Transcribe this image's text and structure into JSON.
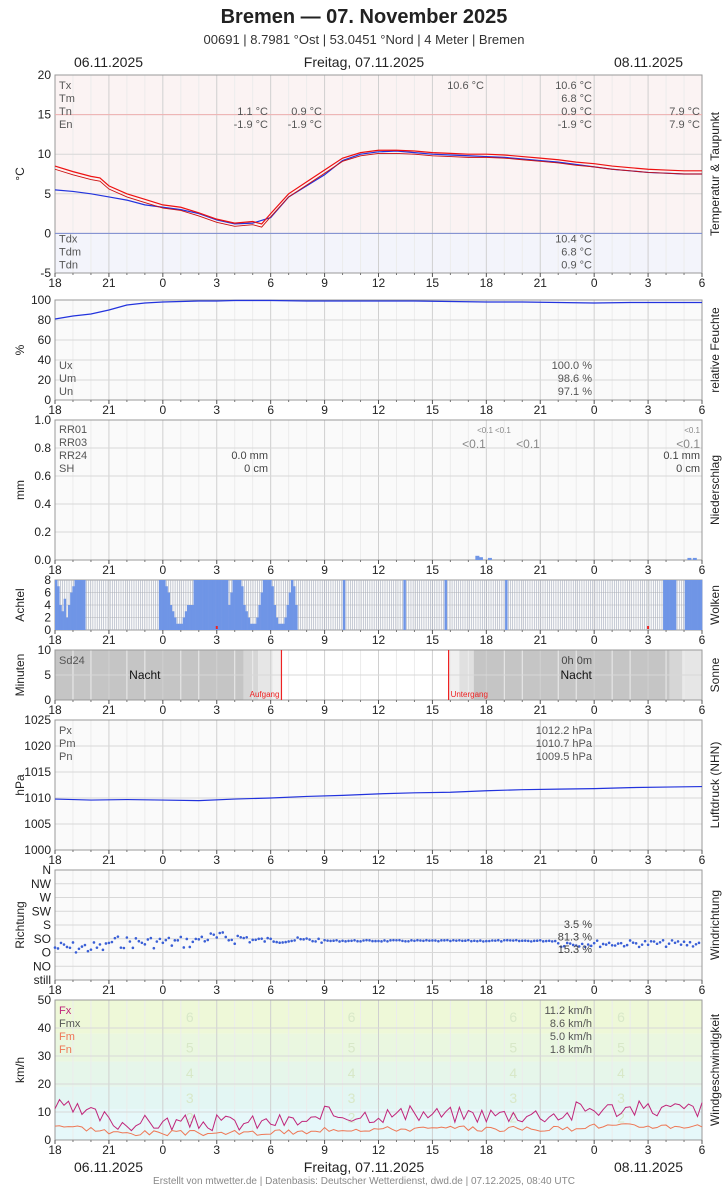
{
  "header": {
    "title": "Bremen  —  07. November 2025",
    "subtitle": "00691  |  8.7981 °Ost  |  53.0451 °Nord  |  4 Meter  |  Bremen",
    "date_left": "06.11.2025",
    "date_center": "Freitag, 07.11.2025",
    "date_right": "08.11.2025"
  },
  "footer": "Erstellt von mtwetter.de | Datenbasis: Deutscher Wetterdienst, dwd.de | 07.12.2025, 08:40 UTC",
  "colors": {
    "red": "#ee1111",
    "blue": "#2233dd",
    "bar": "#6f95e6",
    "dot": "#3a5fd6",
    "grid": "#dddddd",
    "magenta": "#c0257a",
    "orange": "#ee7755"
  },
  "x_ticks": [
    "18",
    "21",
    "0",
    "3",
    "6",
    "9",
    "12",
    "15",
    "18",
    "21",
    "0",
    "3",
    "6"
  ],
  "chart_data": [
    {
      "type": "line",
      "name": "temperature",
      "ylabel": "°C",
      "side_label": "Temperatur & Taupunkt",
      "ylim": [
        -5,
        20
      ],
      "yticks": [
        "20",
        "15",
        "10",
        "5",
        "0",
        "-5"
      ],
      "x_range_hours": [
        0,
        36
      ],
      "series": [
        {
          "name": "T",
          "color": "#ee1111",
          "x": [
            0,
            1,
            2,
            2.5,
            3,
            4,
            5,
            6,
            7,
            8,
            9,
            10,
            11,
            11.5,
            12,
            13,
            14,
            15,
            16,
            17,
            18,
            19,
            20,
            21,
            22,
            23,
            24,
            25,
            26,
            27,
            28,
            29,
            30,
            31,
            32,
            33,
            34,
            35,
            36
          ],
          "values": [
            8.5,
            7.8,
            7.2,
            7,
            6,
            5,
            4.3,
            3.6,
            3.3,
            2.6,
            1.8,
            1.3,
            1.5,
            1.2,
            2.5,
            5,
            6.5,
            8,
            9.5,
            10.2,
            10.5,
            10.5,
            10.4,
            10.2,
            10.1,
            10,
            10,
            9.9,
            9.7,
            9.5,
            9.3,
            9,
            8.8,
            8.5,
            8.3,
            8.1,
            8,
            7.9,
            7.9
          ]
        },
        {
          "name": "Td",
          "color": "#2233dd",
          "x": [
            0,
            1,
            2,
            3,
            4,
            5,
            6,
            7,
            8,
            9,
            10,
            11,
            12,
            13,
            14,
            15,
            16,
            17,
            18,
            19,
            20,
            21,
            22,
            23,
            24,
            25,
            26,
            27,
            28,
            29,
            30,
            31,
            32,
            33,
            34,
            35,
            36
          ],
          "values": [
            5.5,
            5.3,
            5,
            4.6,
            4.2,
            3.6,
            3.3,
            3,
            2.5,
            1.7,
            1.2,
            1.3,
            2,
            4.6,
            6,
            7.4,
            9.2,
            10,
            10.3,
            10.4,
            10.2,
            10,
            9.9,
            9.8,
            9.7,
            9.6,
            9.4,
            9.2,
            9,
            8.7,
            8.4,
            8.1,
            7.9,
            7.7,
            7.6,
            7.5,
            7.5
          ]
        }
      ],
      "labels_top": [
        {
          "k": "Tx",
          "v1": "",
          "v2": "10.6 °C",
          "v3": "10.6 °C",
          "v4": ""
        },
        {
          "k": "Tm",
          "v1": "",
          "v2": "",
          "v3": "6.8 °C",
          "v4": ""
        },
        {
          "k": "Tn",
          "v1": "1.1 °C",
          "v1b": "0.9 °C",
          "v3": "0.9 °C",
          "v4": "7.9 °C"
        },
        {
          "k": "En",
          "v1": "-1.9 °C",
          "v1b": "-1.9 °C",
          "v3": "-1.9 °C",
          "v4": "7.9 °C"
        }
      ],
      "labels_bottom": [
        {
          "k": "Tdx",
          "v3": "10.4 °C"
        },
        {
          "k": "Tdm",
          "v3": "6.8 °C"
        },
        {
          "k": "Tdn",
          "v3": "0.9 °C"
        }
      ]
    },
    {
      "type": "line",
      "name": "humidity",
      "ylabel": "%",
      "side_label": "relative Feuchte",
      "ylim": [
        0,
        100
      ],
      "yticks": [
        "100",
        "80",
        "60",
        "40",
        "20",
        "0"
      ],
      "series": [
        {
          "name": "RH",
          "color": "#2233dd",
          "x": [
            0,
            1,
            2,
            3,
            4,
            5,
            6,
            7,
            8,
            9,
            10,
            12,
            14,
            16,
            18,
            20,
            22,
            24,
            26,
            28,
            30,
            32,
            34,
            36
          ],
          "values": [
            81,
            84,
            86,
            90,
            95,
            97,
            98,
            98.5,
            99,
            99,
            99.5,
            99.5,
            99,
            99,
            99,
            99,
            98.5,
            98,
            98,
            97.5,
            97,
            97.5,
            97.5,
            97.5
          ]
        }
      ],
      "labels": [
        {
          "k": "Ux",
          "v": "100.0 %"
        },
        {
          "k": "Um",
          "v": "98.6 %"
        },
        {
          "k": "Un",
          "v": "97.1 %"
        }
      ]
    },
    {
      "type": "bar",
      "name": "precipitation",
      "ylabel": "mm",
      "side_label": "Niederschlag",
      "ylim": [
        0,
        1.0
      ],
      "yticks": [
        "1.0",
        "0.8",
        "0.6",
        "0.4",
        "0.2",
        "0.0"
      ],
      "bars": [
        {
          "x": 23.5,
          "value": 0.03
        },
        {
          "x": 23.7,
          "value": 0.02
        },
        {
          "x": 24.2,
          "value": 0.015
        },
        {
          "x": 35.3,
          "value": 0.015
        },
        {
          "x": 35.6,
          "value": 0.015
        }
      ],
      "labels": [
        {
          "k": "RR01",
          "v": "",
          "note1": "<0.1",
          "note2": "<0.1",
          "note3": "<0.1"
        },
        {
          "k": "RR03",
          "v": "",
          "big1": "<0.1",
          "big2": "<0.1",
          "big3": "<0.1"
        },
        {
          "k": "RR24",
          "v": "0.0 mm",
          "v2": "0.1 mm"
        },
        {
          "k": "SH",
          "v": "0 cm",
          "v2": "0 cm"
        }
      ]
    },
    {
      "type": "bar",
      "name": "clouds",
      "ylabel": "Achtel",
      "side_label": "Wolken",
      "ylim": [
        0,
        8
      ],
      "yticks": [
        "8",
        "6",
        "4",
        "2",
        "0"
      ],
      "values": [
        8,
        7,
        4,
        3,
        5,
        2,
        4,
        6,
        7,
        8,
        8,
        8,
        8,
        8,
        0,
        0,
        0,
        0,
        0,
        0,
        0,
        0,
        0,
        0,
        0,
        0,
        0,
        0,
        0,
        0,
        0,
        0,
        0,
        0,
        0,
        0,
        0,
        0,
        0,
        0,
        0,
        0,
        0,
        0,
        0,
        0,
        0,
        0,
        8,
        8,
        8,
        7,
        6,
        4,
        3,
        2,
        1,
        1,
        1,
        2,
        3,
        4,
        4,
        4,
        8,
        8,
        8,
        8,
        8,
        8,
        8,
        8,
        8,
        8,
        8,
        8,
        8,
        8,
        8,
        8,
        4,
        6,
        8,
        8,
        8,
        8,
        7,
        4,
        3,
        2,
        1,
        1,
        1,
        2,
        4,
        6,
        8,
        8,
        8,
        8,
        7,
        4,
        2,
        1,
        1,
        1,
        2,
        4,
        6,
        8,
        7,
        4,
        0,
        0,
        0,
        0,
        0,
        0,
        0,
        0,
        0,
        0,
        0,
        0,
        0,
        0,
        0,
        0,
        0,
        0,
        0,
        0,
        0,
        8,
        0,
        0,
        0,
        0,
        0,
        0,
        0,
        0,
        0,
        0,
        0,
        0,
        0,
        0,
        0,
        0,
        0,
        0,
        0,
        0,
        0,
        0,
        0,
        0,
        0,
        0,
        0,
        8,
        0,
        0,
        0,
        0,
        0,
        0,
        0,
        0,
        0,
        0,
        0,
        0,
        0,
        0,
        0,
        0,
        0,
        0,
        8,
        0,
        0,
        0,
        0,
        0,
        0,
        0,
        0,
        0,
        0,
        0,
        0,
        0,
        0,
        0,
        0,
        0,
        0,
        0,
        0,
        0,
        0,
        0,
        0,
        0,
        0,
        0,
        8,
        0,
        0,
        0,
        0,
        0,
        0,
        0,
        0,
        0,
        0,
        0,
        0,
        0,
        0,
        0,
        0,
        0,
        0,
        0,
        0,
        0,
        0,
        0,
        0,
        0,
        0,
        0,
        0,
        0,
        0,
        0,
        0,
        0,
        0,
        0,
        0,
        0,
        0,
        0,
        0,
        0,
        0,
        0,
        0,
        0,
        0,
        0,
        0,
        0,
        0,
        0,
        0,
        0,
        0,
        0,
        0,
        0,
        0,
        0,
        0,
        0,
        0,
        0,
        0,
        0,
        0,
        0,
        0,
        0,
        0,
        0,
        0,
        8,
        8,
        8,
        8,
        8,
        8,
        0,
        0,
        0,
        0,
        8,
        8,
        8,
        8,
        8,
        8,
        8,
        8
      ]
    },
    {
      "type": "bar",
      "name": "sunshine",
      "ylabel": "Minuten",
      "side_label": "Sonne",
      "ylim": [
        0,
        10
      ],
      "yticks": [
        "10",
        "5",
        "0"
      ],
      "labels": [
        {
          "k": "Sd24",
          "v": "0h 0m"
        }
      ],
      "night_label": "Nacht",
      "sunrise_label": "Aufgang",
      "sunset_label": "Untergang"
    },
    {
      "type": "line",
      "name": "pressure",
      "ylabel": "hPa",
      "side_label": "Luftdruck (NHN)",
      "ylim": [
        1000,
        1025
      ],
      "yticks": [
        "1025",
        "1020",
        "1015",
        "1010",
        "1005",
        "1000"
      ],
      "series": [
        {
          "name": "P",
          "color": "#2233dd",
          "x": [
            0,
            2,
            4,
            6,
            8,
            10,
            12,
            14,
            16,
            18,
            20,
            22,
            24,
            26,
            28,
            30,
            32,
            34,
            36
          ],
          "values": [
            1009.8,
            1009.6,
            1009.7,
            1009.6,
            1009.5,
            1009.8,
            1010.0,
            1010.3,
            1010.5,
            1010.8,
            1011.0,
            1011.1,
            1011.4,
            1011.6,
            1011.7,
            1011.8,
            1012.0,
            1012.1,
            1012.2
          ]
        }
      ],
      "labels": [
        {
          "k": "Px",
          "v": "1012.2 hPa"
        },
        {
          "k": "Pm",
          "v": "1010.7 hPa"
        },
        {
          "k": "Pn",
          "v": "1009.5 hPa"
        }
      ]
    },
    {
      "type": "scatter",
      "name": "wind_direction",
      "ylabel": "Richtung",
      "side_label": "Windrichtung",
      "yticks": [
        "N",
        "NW",
        "W",
        "SW",
        "S",
        "SO",
        "O",
        "NO",
        "still"
      ],
      "labels": [
        {
          "k": "",
          "v": "3.5 %"
        },
        {
          "k": "",
          "v": "81.3 %"
        },
        {
          "k": "",
          "v": "15.3 %"
        }
      ]
    },
    {
      "type": "line",
      "name": "wind_speed",
      "ylabel": "km/h",
      "side_label": "Windgeschwindigkeit",
      "ylim": [
        0,
        50
      ],
      "yticks": [
        "50",
        "40",
        "30",
        "20",
        "10",
        "0"
      ],
      "beaufort": [
        "6",
        "5",
        "4",
        "3",
        "2"
      ],
      "series": [
        {
          "name": "Fx",
          "color": "#c0257a"
        },
        {
          "name": "Fm",
          "color": "#ee7755"
        }
      ],
      "labels": [
        {
          "k": "Fx",
          "v": "11.2 km/h"
        },
        {
          "k": "Fmx",
          "v": "8.6 km/h"
        },
        {
          "k": "Fm",
          "v": "5.0 km/h"
        },
        {
          "k": "Fn",
          "v": "1.8 km/h"
        }
      ]
    }
  ]
}
